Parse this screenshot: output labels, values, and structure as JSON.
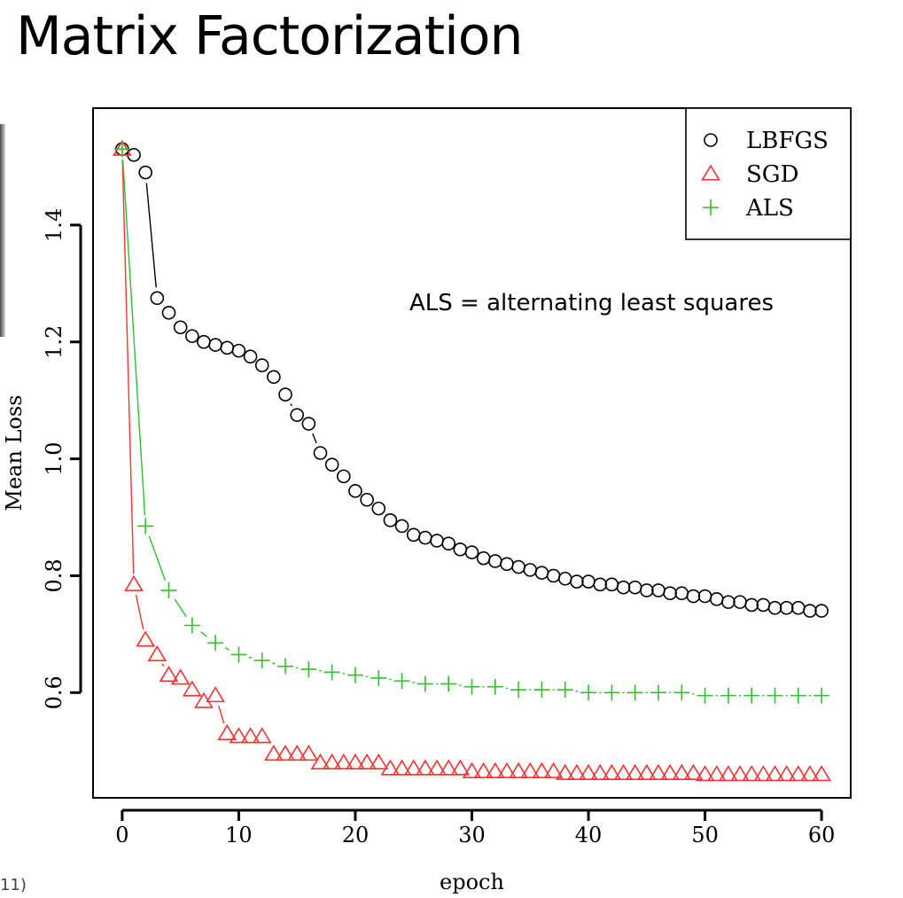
{
  "slide": {
    "title": "Matrix Factorization",
    "footnote": "11)"
  },
  "chart_data": {
    "type": "line",
    "xlabel": "epoch",
    "ylabel": "Mean Loss",
    "xlim": [
      -2.5,
      62.5
    ],
    "ylim": [
      0.42,
      1.6
    ],
    "xticks": [
      0,
      10,
      20,
      30,
      40,
      50,
      60
    ],
    "yticks": [
      0.6,
      0.8,
      1.0,
      1.2,
      1.4
    ],
    "ytick_labels": [
      "0.6",
      "0.8",
      "1.0",
      "1.2",
      "1.4"
    ],
    "grid": false,
    "legend_position": "top-right",
    "annotation": "ALS = alternating least squares",
    "series": [
      {
        "name": "LBFGS",
        "marker": "circle",
        "color": "#000000",
        "x": [
          0,
          1,
          2,
          3,
          4,
          5,
          6,
          7,
          8,
          9,
          10,
          11,
          12,
          13,
          14,
          15,
          16,
          17,
          18,
          19,
          20,
          21,
          22,
          23,
          24,
          25,
          26,
          27,
          28,
          29,
          30,
          31,
          32,
          33,
          34,
          35,
          36,
          37,
          38,
          39,
          40,
          41,
          42,
          43,
          44,
          45,
          46,
          47,
          48,
          49,
          50,
          51,
          52,
          53,
          54,
          55,
          56,
          57,
          58,
          59,
          60
        ],
        "values": [
          1.53,
          1.52,
          1.49,
          1.275,
          1.25,
          1.225,
          1.21,
          1.2,
          1.195,
          1.19,
          1.185,
          1.175,
          1.16,
          1.14,
          1.11,
          1.075,
          1.06,
          1.01,
          0.99,
          0.97,
          0.945,
          0.93,
          0.915,
          0.895,
          0.885,
          0.87,
          0.865,
          0.86,
          0.855,
          0.845,
          0.84,
          0.83,
          0.825,
          0.82,
          0.815,
          0.81,
          0.805,
          0.8,
          0.795,
          0.79,
          0.79,
          0.785,
          0.785,
          0.78,
          0.78,
          0.775,
          0.775,
          0.77,
          0.77,
          0.765,
          0.765,
          0.76,
          0.755,
          0.755,
          0.75,
          0.75,
          0.745,
          0.745,
          0.745,
          0.74,
          0.74
        ]
      },
      {
        "name": "SGD",
        "marker": "triangle",
        "color": "#ff3030",
        "x": [
          0,
          1,
          2,
          3,
          4,
          5,
          6,
          7,
          8,
          9,
          10,
          11,
          12,
          13,
          14,
          15,
          16,
          17,
          18,
          19,
          20,
          21,
          22,
          23,
          24,
          25,
          26,
          27,
          28,
          29,
          30,
          31,
          32,
          33,
          34,
          35,
          36,
          37,
          38,
          39,
          40,
          41,
          42,
          43,
          44,
          45,
          46,
          47,
          48,
          49,
          50,
          51,
          52,
          53,
          54,
          55,
          56,
          57,
          58,
          59,
          60
        ],
        "values": [
          1.53,
          0.785,
          0.69,
          0.665,
          0.63,
          0.625,
          0.605,
          0.585,
          0.595,
          0.53,
          0.525,
          0.525,
          0.525,
          0.495,
          0.495,
          0.495,
          0.495,
          0.48,
          0.48,
          0.48,
          0.48,
          0.48,
          0.48,
          0.47,
          0.47,
          0.47,
          0.47,
          0.47,
          0.47,
          0.47,
          0.465,
          0.465,
          0.465,
          0.465,
          0.465,
          0.465,
          0.465,
          0.465,
          0.462,
          0.462,
          0.462,
          0.462,
          0.462,
          0.462,
          0.462,
          0.462,
          0.462,
          0.462,
          0.462,
          0.462,
          0.46,
          0.46,
          0.46,
          0.46,
          0.46,
          0.46,
          0.46,
          0.46,
          0.46,
          0.46,
          0.46
        ]
      },
      {
        "name": "ALS",
        "marker": "plus",
        "color": "#30c030",
        "x": [
          0,
          2,
          4,
          6,
          8,
          10,
          12,
          14,
          16,
          18,
          20,
          22,
          24,
          26,
          28,
          30,
          32,
          34,
          36,
          38,
          40,
          42,
          44,
          46,
          48,
          50,
          52,
          54,
          56,
          58,
          60
        ],
        "values": [
          1.53,
          0.885,
          0.775,
          0.715,
          0.685,
          0.665,
          0.655,
          0.645,
          0.64,
          0.635,
          0.63,
          0.625,
          0.62,
          0.615,
          0.615,
          0.61,
          0.61,
          0.605,
          0.605,
          0.605,
          0.6,
          0.6,
          0.6,
          0.6,
          0.6,
          0.595,
          0.595,
          0.595,
          0.595,
          0.595,
          0.595
        ]
      }
    ]
  }
}
